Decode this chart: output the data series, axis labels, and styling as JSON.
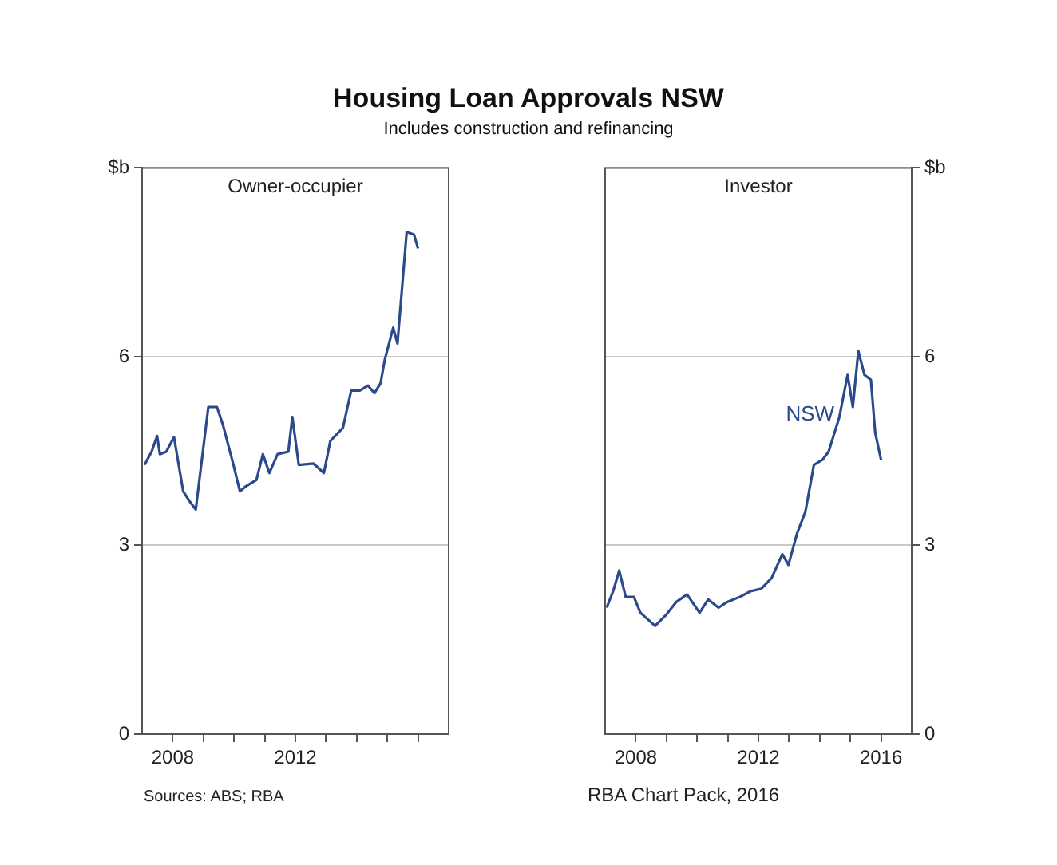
{
  "chart_data": [
    {
      "type": "line",
      "title": "Housing Loan Approvals NSW",
      "subtitle": "Includes construction and refinancing",
      "annotations": [
        "Owner-occupier",
        "Sources: ABS; RBA",
        "RBA Chart Pack, 2016"
      ],
      "xlim": [
        2007,
        2017
      ],
      "xticks": [
        {
          "value": 2008,
          "label": "2008"
        },
        {
          "value": 2009,
          "label": null
        },
        {
          "value": 2010,
          "label": null
        },
        {
          "value": 2011,
          "label": null
        },
        {
          "value": 2012,
          "label": "2012"
        },
        {
          "value": 2013,
          "label": null
        },
        {
          "value": 2014,
          "label": null
        },
        {
          "value": 2015,
          "label": null
        },
        {
          "value": 2016,
          "label": null
        }
      ],
      "ylim": [
        0,
        9
      ],
      "yticks": [
        0,
        3,
        6,
        {
          "value": 9,
          "label": "$b"
        }
      ],
      "grid": "y",
      "legend": false,
      "series": [
        {
          "color": "#2b4a8b",
          "x": [
            2007.08,
            2007.31,
            2007.49,
            2007.58,
            2007.79,
            2008.04,
            2008.34,
            2008.55,
            2008.75,
            2009.16,
            2009.44,
            2009.64,
            2009.98,
            2010.19,
            2010.39,
            2010.73,
            2010.94,
            2011.15,
            2011.42,
            2011.77,
            2011.9,
            2012.11,
            2012.59,
            2012.93,
            2013.14,
            2013.55,
            2013.82,
            2014.09,
            2014.37,
            2014.58,
            2014.78,
            2014.92,
            2015.19,
            2015.33,
            2015.63,
            2015.87,
            2016.0
          ],
          "values": [
            4.28,
            4.49,
            4.74,
            4.45,
            4.49,
            4.72,
            3.86,
            3.7,
            3.57,
            5.2,
            5.2,
            4.91,
            4.28,
            3.86,
            3.94,
            4.04,
            4.45,
            4.15,
            4.45,
            4.49,
            5.04,
            4.28,
            4.3,
            4.15,
            4.66,
            4.87,
            5.46,
            5.46,
            5.54,
            5.42,
            5.58,
            5.96,
            6.46,
            6.21,
            7.98,
            7.94,
            7.72
          ]
        }
      ]
    },
    {
      "type": "line",
      "annotations": [
        "Investor"
      ],
      "xlim": [
        2007,
        2017
      ],
      "xticks": [
        {
          "value": 2008,
          "label": "2008"
        },
        {
          "value": 2009,
          "label": null
        },
        {
          "value": 2010,
          "label": null
        },
        {
          "value": 2011,
          "label": null
        },
        {
          "value": 2012,
          "label": "2012"
        },
        {
          "value": 2013,
          "label": null
        },
        {
          "value": 2014,
          "label": null
        },
        {
          "value": 2015,
          "label": null
        },
        {
          "value": 2016,
          "label": "2016"
        }
      ],
      "y2lim": [
        0,
        9
      ],
      "y2ticks": [
        0,
        3,
        6,
        {
          "value": 9,
          "label": "$b"
        }
      ],
      "grid": "y",
      "legend": false,
      "series": [
        {
          "name": "NSW",
          "color": "#2b4a8b",
          "axis": "y2",
          "x": [
            2007.05,
            2007.26,
            2007.46,
            2007.67,
            2007.94,
            2008.15,
            2008.63,
            2008.98,
            2009.32,
            2009.67,
            2010.08,
            2010.36,
            2010.7,
            2010.98,
            2011.39,
            2011.74,
            2012.09,
            2012.43,
            2012.78,
            2012.98,
            2013.26,
            2013.53,
            2013.81,
            2014.09,
            2014.29,
            2014.64,
            2014.91,
            2015.08,
            2015.26,
            2015.46,
            2015.67,
            2015.81,
            2016.0
          ],
          "values": [
            2.01,
            2.27,
            2.6,
            2.18,
            2.18,
            1.93,
            1.72,
            1.89,
            2.1,
            2.22,
            1.93,
            2.14,
            2.01,
            2.1,
            2.18,
            2.27,
            2.31,
            2.48,
            2.86,
            2.69,
            3.19,
            3.53,
            4.28,
            4.36,
            4.49,
            5.04,
            5.71,
            5.2,
            6.09,
            5.71,
            5.63,
            4.79,
            4.36
          ]
        }
      ]
    }
  ]
}
